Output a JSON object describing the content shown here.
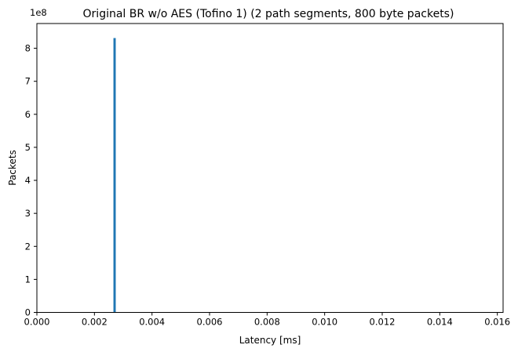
{
  "chart_data": {
    "type": "bar",
    "title": "Original BR w/o AES (Tofino 1) (2 path segments, 800 byte packets)",
    "xlabel": "Latency [ms]",
    "ylabel": "Packets",
    "y_offset_text": "1e8",
    "xlim": [
      0,
      0.0162
    ],
    "ylim": [
      0,
      8.75
    ],
    "x_ticks": [
      0,
      0.002,
      0.004,
      0.006,
      0.008,
      0.01,
      0.012,
      0.014,
      0.016
    ],
    "x_tick_labels": [
      "0.000",
      "0.002",
      "0.004",
      "0.006",
      "0.008",
      "0.010",
      "0.012",
      "0.014",
      "0.016"
    ],
    "y_ticks": [
      0,
      1,
      2,
      3,
      4,
      5,
      6,
      7,
      8
    ],
    "y_tick_labels": [
      "0",
      "1",
      "2",
      "3",
      "4",
      "5",
      "6",
      "7",
      "8"
    ],
    "bars": [
      {
        "x_start": 0.00266,
        "x_end": 0.00274,
        "value": 8.31
      }
    ],
    "bar_color": "#1f77b4",
    "grid": false,
    "legend": "none"
  }
}
